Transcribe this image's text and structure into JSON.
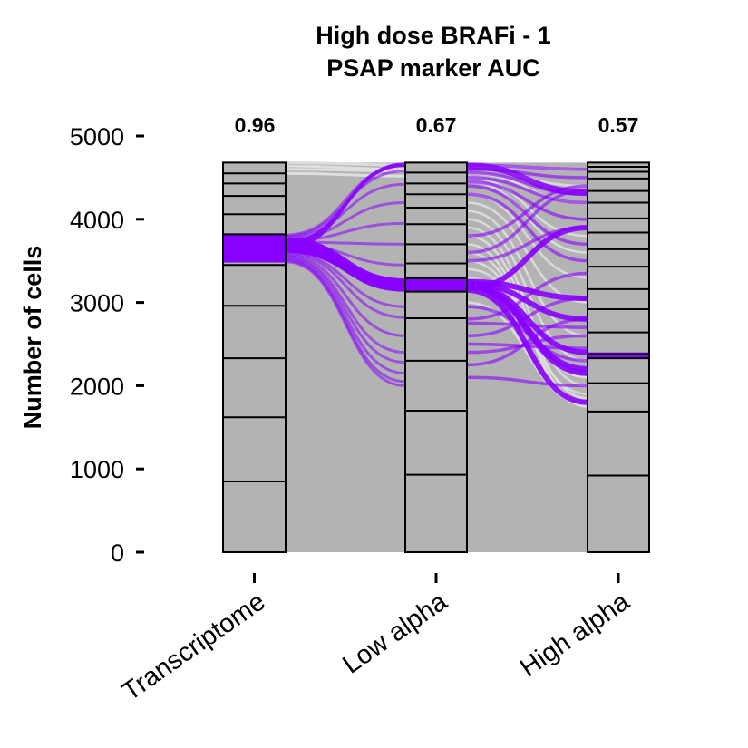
{
  "chart_data": {
    "type": "alluvial",
    "title": "High dose BRAFi - 1",
    "subtitle": "PSAP marker AUC",
    "xlabel": "",
    "ylabel": "Number of cells",
    "ylim": [
      0,
      5000
    ],
    "yticks": [
      "0",
      "1000",
      "2000",
      "3000",
      "4000",
      "5000"
    ],
    "total_cells": 4680,
    "categories": [
      "Transcriptome",
      "Low alpha",
      "High alpha"
    ],
    "auc": [
      "0.96",
      "0.67",
      "0.57"
    ],
    "colors": {
      "highlight": "#8800ff",
      "block": "#b3b3b3",
      "flow_background": "#b3b3b3",
      "flow_light": "#dedede"
    },
    "axes": [
      {
        "name": "Transcriptome",
        "boundaries": [
          0,
          850,
          1620,
          2330,
          2960,
          3450,
          3820,
          4060,
          4280,
          4430,
          4550,
          4680
        ],
        "highlight": [
          3480,
          3820
        ]
      },
      {
        "name": "Low alpha",
        "boundaries": [
          0,
          930,
          1700,
          2300,
          2810,
          3130,
          3290,
          3470,
          3700,
          3940,
          4140,
          4300,
          4430,
          4560,
          4680
        ],
        "highlight": [
          3130,
          3290
        ]
      },
      {
        "name": "High alpha",
        "boundaries": [
          0,
          920,
          1690,
          2030,
          2330,
          2380,
          2640,
          2920,
          3160,
          3430,
          3640,
          3840,
          4010,
          4200,
          4340,
          4490,
          4570,
          4630,
          4680
        ],
        "highlight": [
          2320,
          2400
        ]
      }
    ],
    "highlight_flows": {
      "transcriptome_to_low_alpha": [
        4650,
        4580,
        4420,
        4200,
        3950,
        3700,
        3450,
        3250,
        3230,
        3210,
        3190,
        3170,
        2950,
        2820,
        2600,
        2400,
        2280,
        2150,
        2050,
        2000
      ],
      "low_alpha_to_high_alpha": [
        [
          4650,
          4600
        ],
        [
          4600,
          4500
        ],
        [
          4560,
          4300
        ],
        [
          4500,
          4200
        ],
        [
          4450,
          4000
        ],
        [
          4400,
          3700
        ],
        [
          4300,
          3500
        ],
        [
          3800,
          4400
        ],
        [
          3600,
          4350
        ],
        [
          3500,
          3900
        ],
        [
          3250,
          3050
        ],
        [
          3230,
          2800
        ],
        [
          3210,
          2400
        ],
        [
          3200,
          2200
        ],
        [
          3190,
          2150
        ],
        [
          3170,
          3900
        ],
        [
          3150,
          1800
        ],
        [
          2950,
          2300
        ],
        [
          2800,
          3350
        ],
        [
          2750,
          2700
        ],
        [
          2600,
          3050
        ],
        [
          2500,
          2450
        ],
        [
          2400,
          2600
        ],
        [
          2250,
          2800
        ],
        [
          2100,
          2000
        ]
      ]
    }
  }
}
